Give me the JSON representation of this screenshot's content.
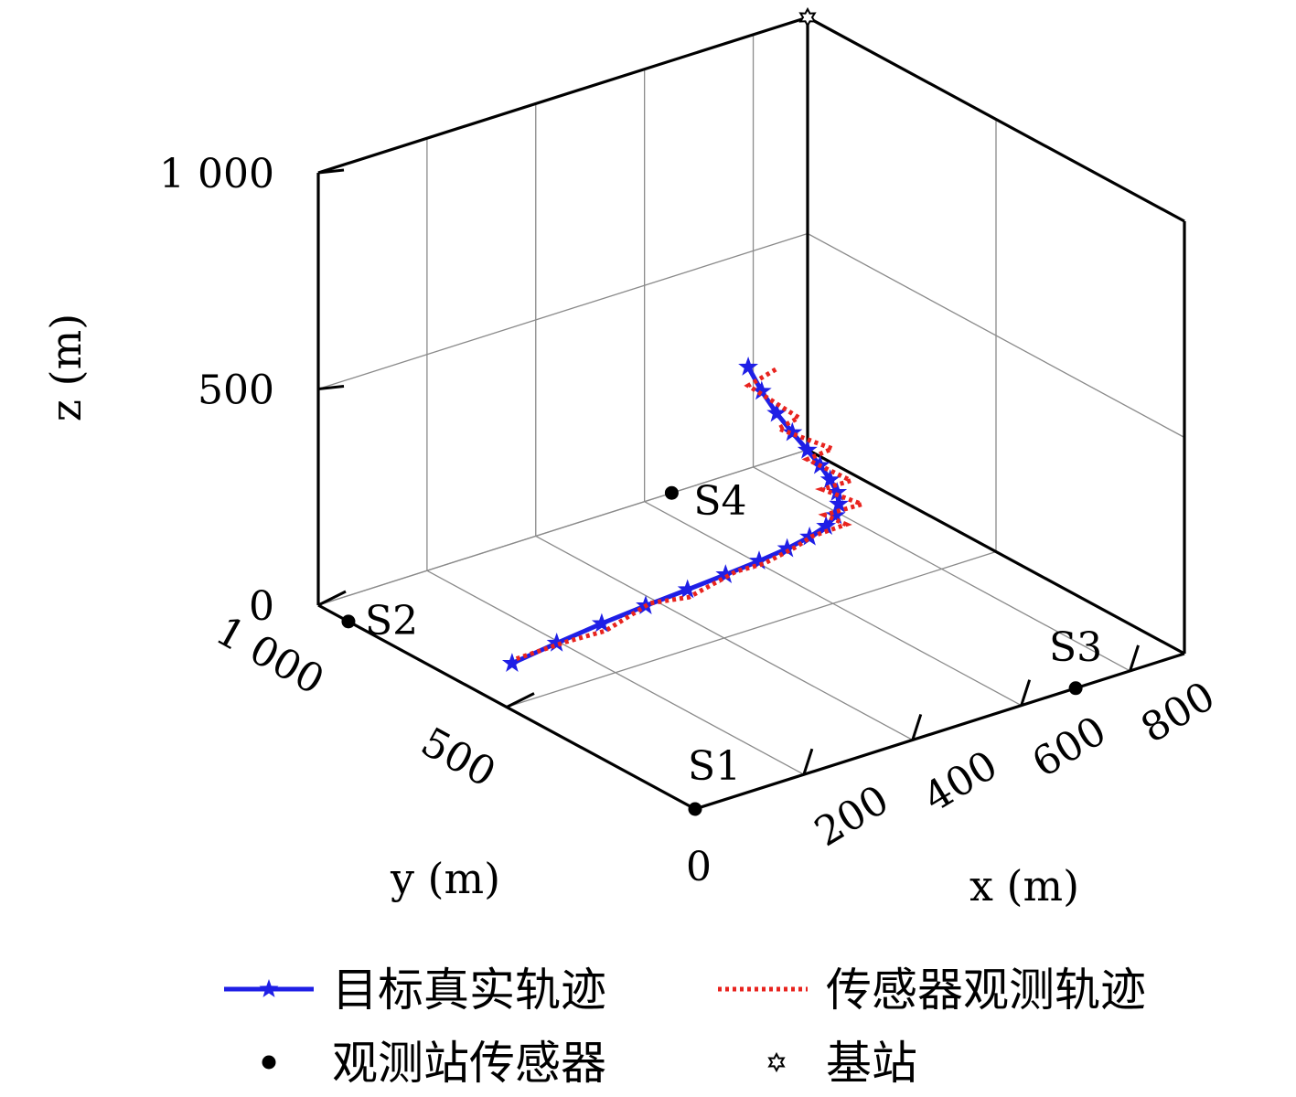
{
  "chart_data": {
    "type": "line3d",
    "xlabel": "x (m)",
    "ylabel": "y (m)",
    "zlabel": "z (m)",
    "xlim": [
      0,
      900
    ],
    "ylim": [
      0,
      1000
    ],
    "zlim": [
      0,
      1000
    ],
    "x_ticks": [
      "200",
      "400",
      "600",
      "800"
    ],
    "x_tick_values": [
      200,
      400,
      600,
      800
    ],
    "y_ticks": [
      "0",
      "500",
      "1 000"
    ],
    "y_tick_values": [
      0,
      500,
      1000
    ],
    "z_ticks": [
      "0",
      "500",
      "1 000"
    ],
    "z_tick_values": [
      0,
      500,
      1000
    ],
    "grid": true,
    "legend_position": "bottom",
    "series": [
      {
        "name": "目标真实轨迹",
        "style": "solid-star",
        "color": "#1f1fe6",
        "points": [
          [
            100,
            630,
            0
          ],
          [
            146,
            578,
            53
          ],
          [
            190,
            522,
            107
          ],
          [
            230,
            463,
            160
          ],
          [
            264,
            401,
            213
          ],
          [
            291,
            339,
            266
          ],
          [
            309,
            276,
            320
          ],
          [
            319,
            216,
            373
          ],
          [
            320,
            158,
            427
          ],
          [
            313,
            104,
            480
          ],
          [
            298,
            57,
            533
          ],
          [
            276,
            17,
            587
          ],
          [
            250,
            -16,
            640
          ],
          [
            220,
            -41,
            693
          ],
          [
            189,
            -59,
            747
          ],
          [
            158,
            -70,
            800
          ],
          [
            129,
            -72,
            853
          ],
          [
            103,
            -68,
            906
          ],
          [
            83,
            -57,
            960
          ],
          [
            70,
            -40,
            1013
          ]
        ]
      },
      {
        "name": "传感器观测轨迹",
        "style": "dotted",
        "color": "#e8231e",
        "points": [
          [
            115,
            640,
            0
          ],
          [
            170,
            590,
            40
          ],
          [
            185,
            505,
            100
          ],
          [
            250,
            480,
            150
          ],
          [
            252,
            380,
            210
          ],
          [
            325,
            360,
            250
          ],
          [
            300,
            250,
            330
          ],
          [
            345,
            230,
            360
          ],
          [
            312,
            140,
            440
          ],
          [
            340,
            90,
            480
          ],
          [
            280,
            60,
            540
          ],
          [
            300,
            -10,
            590
          ],
          [
            230,
            -5,
            650
          ],
          [
            245,
            -60,
            690
          ],
          [
            175,
            -45,
            760
          ],
          [
            190,
            -90,
            800
          ],
          [
            115,
            -55,
            860
          ],
          [
            125,
            -95,
            900
          ],
          [
            70,
            -40,
            970
          ],
          [
            100,
            -70,
            1010
          ]
        ]
      }
    ],
    "stations": [
      {
        "label": "S1",
        "x": 0,
        "y": 0,
        "z": 0
      },
      {
        "label": "S2",
        "x": 0,
        "y": 920,
        "z": 0
      },
      {
        "label": "S3",
        "x": 700,
        "y": 0,
        "z": 0
      },
      {
        "label": "S4",
        "x": 650,
        "y": 1000,
        "z": 0
      }
    ],
    "base_station": {
      "x": 900,
      "y": 1000,
      "z": 1000
    },
    "legend": [
      {
        "label": "目标真实轨迹",
        "kind": "star-line",
        "color": "#1f1fe6"
      },
      {
        "label": "传感器观测轨迹",
        "kind": "dotted-line",
        "color": "#e8231e"
      },
      {
        "label": "观测站传感器",
        "kind": "dot",
        "color": "#000000"
      },
      {
        "label": "基站",
        "kind": "hexagram",
        "color": "#000000"
      }
    ]
  }
}
